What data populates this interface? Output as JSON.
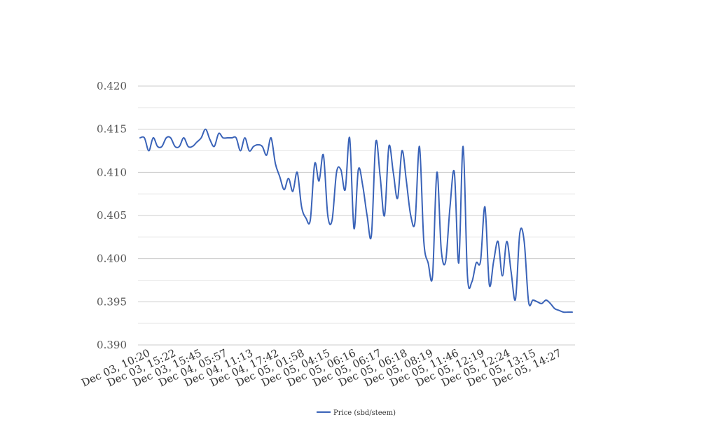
{
  "chart_data": {
    "type": "line",
    "title": "",
    "xlabel": "",
    "ylabel": "",
    "ylim": [
      0.39,
      0.42
    ],
    "yticks": [
      "0.390",
      "0.395",
      "0.400",
      "0.405",
      "0.410",
      "0.415",
      "0.420"
    ],
    "grid": true,
    "legend_position": "bottom",
    "line_color": "#3a63b8",
    "grid_color": "#cccccc",
    "minor_grid_color": "#e6e6e6",
    "x_tick_labels": [
      "Dec 03, 10:20",
      "Dec 03, 15:22",
      "Dec 03, 15:45",
      "Dec 04, 05:57",
      "Dec 04, 11:13",
      "Dec 04, 17:42",
      "Dec 05, 01:58",
      "Dec 05, 04:15",
      "Dec 05, 06:16",
      "Dec 05, 06:17",
      "Dec 05, 06:18",
      "Dec 05, 08:19",
      "Dec 05, 11:46",
      "Dec 05, 12:19",
      "Dec 05, 12:24",
      "Dec 05, 13:15",
      "Dec 05, 14:27"
    ],
    "series": [
      {
        "name": "Price (sbd/steem)",
        "values": [
          0.414,
          0.414,
          0.4125,
          0.414,
          0.413,
          0.413,
          0.414,
          0.414,
          0.413,
          0.413,
          0.414,
          0.413,
          0.413,
          0.4135,
          0.414,
          0.415,
          0.4138,
          0.413,
          0.4145,
          0.414,
          0.414,
          0.414,
          0.414,
          0.4125,
          0.414,
          0.4125,
          0.413,
          0.4132,
          0.413,
          0.412,
          0.414,
          0.411,
          0.4095,
          0.408,
          0.4093,
          0.4078,
          0.41,
          0.406,
          0.4047,
          0.4045,
          0.411,
          0.409,
          0.412,
          0.405,
          0.4045,
          0.41,
          0.4103,
          0.408,
          0.414,
          0.4035,
          0.4103,
          0.4085,
          0.405,
          0.4027,
          0.4135,
          0.4095,
          0.405,
          0.413,
          0.41,
          0.407,
          0.4125,
          0.409,
          0.405,
          0.4043,
          0.413,
          0.402,
          0.3995,
          0.398,
          0.41,
          0.401,
          0.3997,
          0.406,
          0.41,
          0.3995,
          0.413,
          0.398,
          0.3973,
          0.3995,
          0.3997,
          0.406,
          0.397,
          0.3997,
          0.402,
          0.398,
          0.402,
          0.3985,
          0.3953,
          0.403,
          0.402,
          0.395,
          0.3952,
          0.395,
          0.3948,
          0.3952,
          0.3948,
          0.3942,
          0.394,
          0.3938,
          0.3938,
          0.3938
        ]
      }
    ]
  }
}
